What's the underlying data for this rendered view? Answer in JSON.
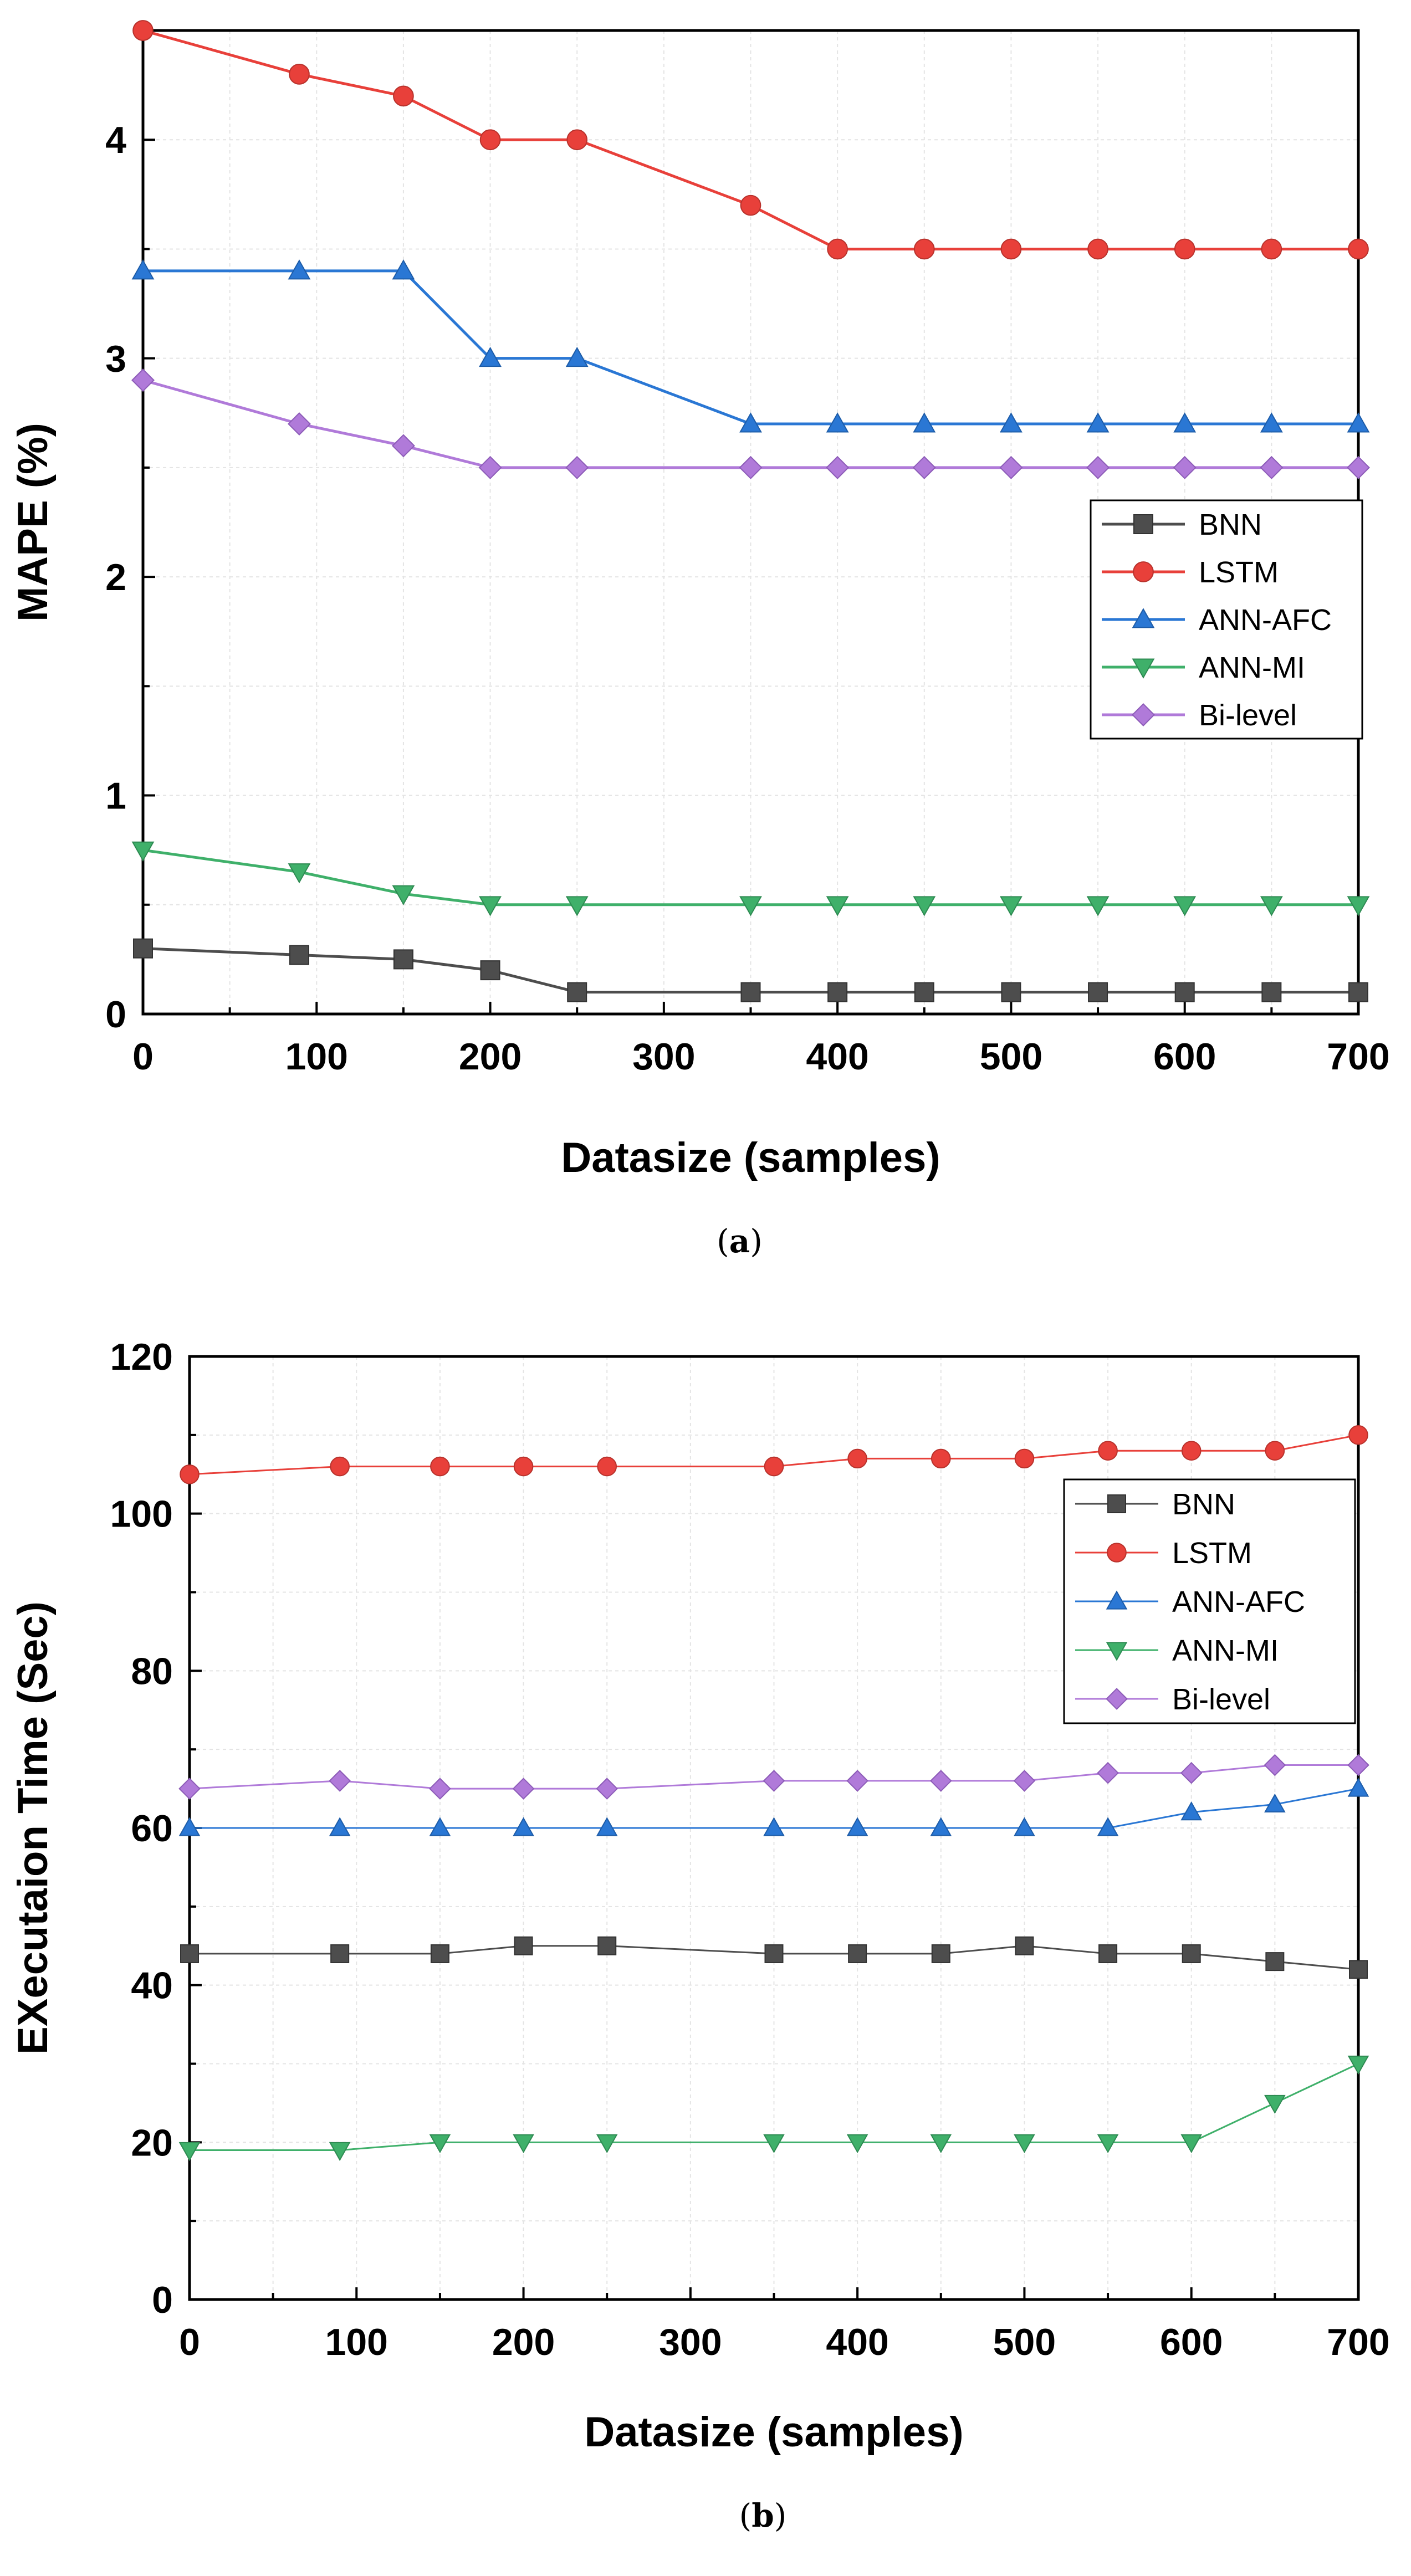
{
  "chart_data": [
    {
      "type": "line",
      "panel": "a",
      "caption_letter": "a",
      "xlabel": "Datasize (samples)",
      "ylabel": "MAPE (%)",
      "xlim": [
        0,
        700
      ],
      "ylim": [
        0,
        4.5
      ],
      "xticks": [
        0,
        100,
        200,
        300,
        400,
        500,
        600,
        700
      ],
      "yticks": [
        0,
        1,
        2,
        3,
        4
      ],
      "grid": true,
      "legend_position": "center-right",
      "x": [
        0,
        90,
        150,
        200,
        250,
        350,
        400,
        450,
        500,
        550,
        600,
        650,
        700
      ],
      "series": [
        {
          "name": "BNN",
          "color": "#4d4d4d",
          "marker": "square",
          "values": [
            0.3,
            0.27,
            0.25,
            0.2,
            0.1,
            0.1,
            0.1,
            0.1,
            0.1,
            0.1,
            0.1,
            0.1,
            0.1
          ]
        },
        {
          "name": "LSTM",
          "color": "#e8403a",
          "marker": "circle",
          "values": [
            4.5,
            4.3,
            4.2,
            4.0,
            4.0,
            3.7,
            3.5,
            3.5,
            3.5,
            3.5,
            3.5,
            3.5,
            3.5
          ]
        },
        {
          "name": "ANN-AFC",
          "color": "#2a77d4",
          "marker": "triangle-up",
          "values": [
            3.4,
            3.4,
            3.4,
            3.0,
            3.0,
            2.7,
            2.7,
            2.7,
            2.7,
            2.7,
            2.7,
            2.7,
            2.7
          ]
        },
        {
          "name": "ANN-MI",
          "color": "#3fb06a",
          "marker": "triangle-down",
          "values": [
            0.75,
            0.65,
            0.55,
            0.5,
            0.5,
            0.5,
            0.5,
            0.5,
            0.5,
            0.5,
            0.5,
            0.5,
            0.5
          ]
        },
        {
          "name": "Bi-level",
          "color": "#b07ad9",
          "marker": "diamond",
          "values": [
            2.9,
            2.7,
            2.6,
            2.5,
            2.5,
            2.5,
            2.5,
            2.5,
            2.5,
            2.5,
            2.5,
            2.5,
            2.5
          ]
        }
      ]
    },
    {
      "type": "line",
      "panel": "b",
      "caption_letter": "b",
      "xlabel": "Datasize (samples)",
      "ylabel": "EXecutaion Time (Sec)",
      "xlim": [
        0,
        700
      ],
      "ylim": [
        0,
        120
      ],
      "xticks": [
        0,
        100,
        200,
        300,
        400,
        500,
        600,
        700
      ],
      "yticks": [
        0,
        20,
        40,
        60,
        80,
        100,
        120
      ],
      "grid": true,
      "legend_position": "top-right",
      "x": [
        0,
        90,
        150,
        200,
        250,
        350,
        400,
        450,
        500,
        550,
        600,
        650,
        700
      ],
      "series": [
        {
          "name": "BNN",
          "color": "#4d4d4d",
          "marker": "square",
          "values": [
            44,
            44,
            44,
            45,
            45,
            44,
            44,
            44,
            45,
            44,
            44,
            43,
            42
          ]
        },
        {
          "name": "LSTM",
          "color": "#e8403a",
          "marker": "circle",
          "values": [
            105,
            106,
            106,
            106,
            106,
            106,
            107,
            107,
            107,
            108,
            108,
            108,
            110
          ]
        },
        {
          "name": "ANN-AFC",
          "color": "#2a77d4",
          "marker": "triangle-up",
          "values": [
            60,
            60,
            60,
            60,
            60,
            60,
            60,
            60,
            60,
            60,
            62,
            63,
            65
          ]
        },
        {
          "name": "ANN-MI",
          "color": "#3fb06a",
          "marker": "triangle-down",
          "values": [
            19,
            19,
            20,
            20,
            20,
            20,
            20,
            20,
            20,
            20,
            20,
            25,
            30
          ]
        },
        {
          "name": "Bi-level",
          "color": "#b07ad9",
          "marker": "diamond",
          "values": [
            65,
            66,
            65,
            65,
            65,
            66,
            66,
            66,
            66,
            67,
            67,
            68,
            68
          ]
        }
      ]
    }
  ]
}
